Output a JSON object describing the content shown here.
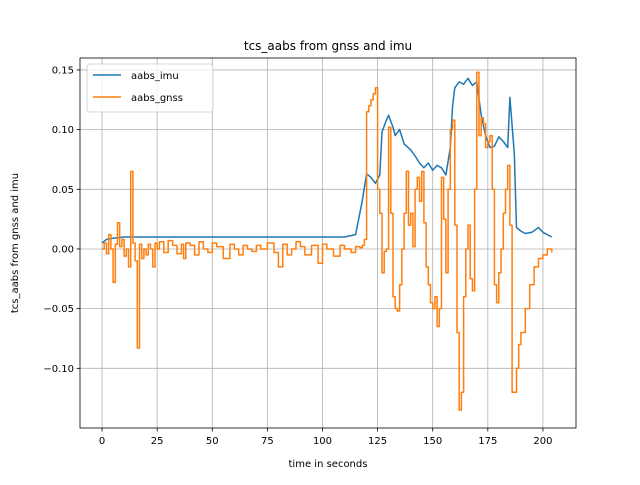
{
  "chart_data": {
    "type": "line",
    "title": "tcs_aabs from gnss and imu",
    "xlabel": "time in seconds",
    "ylabel": "tcs_aabs from gnss and imu",
    "xlim": [
      -10,
      215
    ],
    "ylim": [
      -0.15,
      0.16
    ],
    "xticks": [
      0,
      25,
      50,
      75,
      100,
      125,
      150,
      175,
      200
    ],
    "xtick_labels": [
      "0",
      "25",
      "50",
      "75",
      "100",
      "125",
      "150",
      "175",
      "200"
    ],
    "yticks": [
      -0.1,
      -0.05,
      0.0,
      0.05,
      0.1,
      0.15
    ],
    "ytick_labels": [
      "−0.10",
      "−0.05",
      "0.00",
      "0.05",
      "0.10",
      "0.15"
    ],
    "grid": true,
    "legend_position": "upper-left",
    "series": [
      {
        "name": "aabs_imu",
        "color": "#1f77b4",
        "x": [
          0,
          2,
          5,
          10,
          20,
          40,
          60,
          80,
          100,
          110,
          115,
          118,
          120,
          122,
          124,
          126,
          127,
          129,
          130,
          132,
          133,
          135,
          137,
          140,
          142,
          144,
          146,
          148,
          150,
          152,
          154,
          156,
          158,
          159,
          160,
          162,
          164,
          166,
          168,
          170,
          172,
          174,
          176,
          178,
          180,
          182,
          184,
          185,
          187,
          188,
          190,
          192,
          195,
          198,
          200,
          204
        ],
        "y": [
          0.005,
          0.008,
          0.009,
          0.01,
          0.01,
          0.01,
          0.01,
          0.01,
          0.01,
          0.01,
          0.012,
          0.04,
          0.063,
          0.06,
          0.055,
          0.062,
          0.098,
          0.108,
          0.112,
          0.102,
          0.095,
          0.1,
          0.088,
          0.083,
          0.078,
          0.072,
          0.068,
          0.072,
          0.066,
          0.07,
          0.068,
          0.062,
          0.085,
          0.12,
          0.135,
          0.14,
          0.138,
          0.143,
          0.137,
          0.14,
          0.112,
          0.095,
          0.085,
          0.086,
          0.094,
          0.09,
          0.085,
          0.127,
          0.08,
          0.018,
          0.015,
          0.013,
          0.014,
          0.018,
          0.014,
          0.01
        ]
      },
      {
        "name": "aabs_gnss",
        "color": "#ff7f0e",
        "x": [
          0,
          1,
          2,
          3,
          4,
          5,
          6,
          7,
          8,
          9,
          10,
          11,
          12,
          13,
          14,
          15,
          16,
          17,
          18,
          19,
          20,
          21,
          22,
          23,
          24,
          25,
          26,
          28,
          30,
          32,
          34,
          36,
          37,
          38,
          40,
          42,
          44,
          46,
          48,
          50,
          52,
          55,
          58,
          60,
          62,
          64,
          66,
          68,
          70,
          72,
          75,
          78,
          80,
          82,
          84,
          86,
          88,
          90,
          92,
          95,
          98,
          100,
          102,
          105,
          108,
          110,
          113,
          115,
          117,
          118,
          119,
          120,
          121,
          122,
          123,
          124,
          125,
          126,
          127,
          128,
          129,
          130,
          131,
          132,
          133,
          134,
          135,
          136,
          137,
          138,
          139,
          140,
          141,
          142,
          143,
          144,
          145,
          146,
          147,
          148,
          149,
          150,
          151,
          152,
          153,
          154,
          155,
          156,
          157,
          158,
          159,
          160,
          161,
          162,
          163,
          164,
          165,
          166,
          167,
          168,
          169,
          170,
          171,
          172,
          173,
          174,
          175,
          176,
          177,
          178,
          179,
          180,
          181,
          182,
          183,
          184,
          185,
          186,
          187,
          188,
          189,
          190,
          192,
          194,
          196,
          198,
          200,
          202,
          204
        ],
        "y": [
          0.0,
          0.005,
          -0.004,
          0.012,
          0.0,
          -0.028,
          0.004,
          0.022,
          0.002,
          0.008,
          -0.006,
          0.0,
          -0.015,
          0.065,
          0.005,
          -0.01,
          -0.083,
          0.004,
          -0.008,
          0.0,
          -0.005,
          0.004,
          0.0,
          -0.015,
          0.005,
          0.0,
          0.006,
          -0.003,
          0.007,
          0.003,
          -0.004,
          0.004,
          -0.008,
          0.005,
          0.003,
          -0.005,
          0.006,
          0.0,
          -0.003,
          0.005,
          0.002,
          -0.008,
          0.004,
          0.0,
          -0.005,
          0.003,
          0.0,
          -0.002,
          0.003,
          0.0,
          0.005,
          -0.003,
          -0.015,
          0.004,
          -0.005,
          0.0,
          0.006,
          0.002,
          -0.005,
          0.003,
          -0.012,
          0.004,
          0.0,
          -0.006,
          0.003,
          0.0,
          -0.003,
          0.002,
          0.001,
          0.003,
          0.008,
          0.115,
          0.12,
          0.125,
          0.13,
          0.135,
          0.05,
          0.03,
          -0.02,
          -0.002,
          0.0,
          0.102,
          0.03,
          -0.04,
          -0.05,
          -0.052,
          -0.03,
          0.0,
          0.03,
          0.065,
          0.02,
          0.03,
          0.002,
          0.05,
          0.06,
          0.04,
          0.065,
          0.022,
          -0.015,
          -0.03,
          -0.045,
          -0.05,
          -0.04,
          -0.065,
          -0.05,
          0.06,
          0.025,
          -0.02,
          0.05,
          0.1,
          0.108,
          0.02,
          -0.07,
          -0.135,
          -0.12,
          -0.04,
          0.0,
          0.02,
          -0.025,
          -0.035,
          0.05,
          0.148,
          0.095,
          0.11,
          0.105,
          0.085,
          0.09,
          0.095,
          0.05,
          -0.03,
          -0.045,
          -0.02,
          0.0,
          0.03,
          0.05,
          0.07,
          0.02,
          -0.12,
          -0.12,
          -0.1,
          -0.08,
          -0.07,
          -0.05,
          -0.03,
          -0.015,
          -0.008,
          -0.005,
          0.0,
          -0.003
        ]
      }
    ]
  }
}
